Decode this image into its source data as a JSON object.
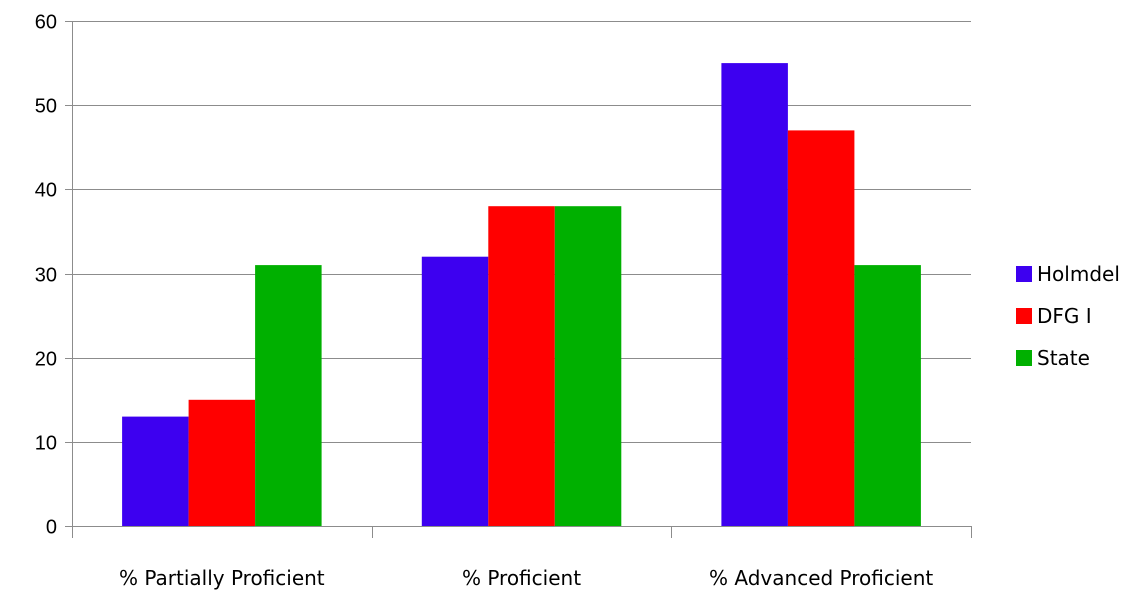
{
  "chart_data": {
    "type": "bar",
    "title": "",
    "xlabel": "",
    "ylabel": "",
    "categories": [
      "% Partially Proficient",
      "% Proficient",
      "% Advanced Proficient"
    ],
    "series": [
      {
        "name": "Holmdel",
        "color": "#3d00f0",
        "values": [
          13,
          32,
          55
        ]
      },
      {
        "name": "DFG I",
        "color": "#ff0000",
        "values": [
          15,
          38,
          47
        ]
      },
      {
        "name": "State",
        "color": "#00b000",
        "values": [
          31,
          38,
          31
        ]
      }
    ],
    "ylim": [
      0,
      60
    ],
    "yticks": [
      0,
      10,
      20,
      30,
      40,
      50,
      60
    ],
    "grid": true,
    "legend_position": "right"
  }
}
